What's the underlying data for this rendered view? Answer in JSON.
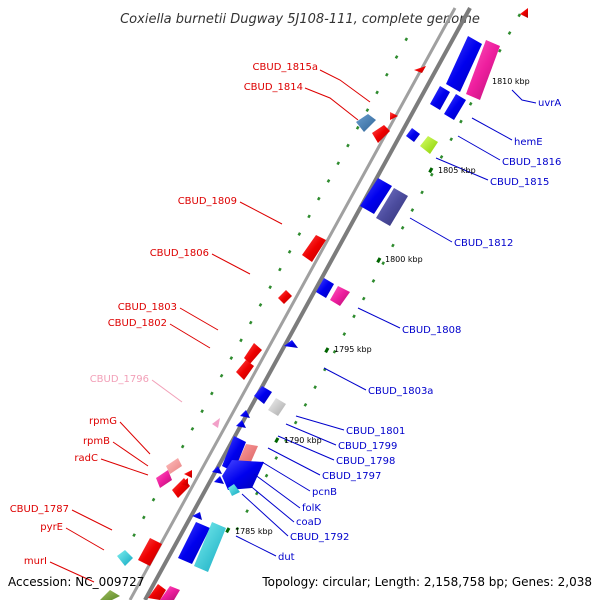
{
  "title": "Coxiella burnetii Dugway 5J108-111, complete genome",
  "footer": {
    "accession": "Accession: NC_009727",
    "summary": "Topology: circular; Length: 2,158,758 bp; Genes: 2,038"
  },
  "colors": {
    "backbone": "#8c8c8c",
    "minor_tick": "#2e8b2e",
    "major_tick": "#006400",
    "left_label": "#dd0000",
    "left_label_faded": "#f2a0b8",
    "right_label": "#0000cc"
  },
  "ticks": [
    {
      "label": "1810 kbp"
    },
    {
      "label": "1805 kbp"
    },
    {
      "label": "1800 kbp"
    },
    {
      "label": "1795 kbp"
    },
    {
      "label": "1790 kbp"
    },
    {
      "label": "1785 kbp"
    }
  ],
  "left_labels": [
    {
      "text": "CBUD_1815a",
      "faded": false
    },
    {
      "text": "CBUD_1814",
      "faded": false
    },
    {
      "text": "CBUD_1809",
      "faded": false
    },
    {
      "text": "CBUD_1806",
      "faded": false
    },
    {
      "text": "CBUD_1803",
      "faded": false
    },
    {
      "text": "CBUD_1802",
      "faded": false
    },
    {
      "text": "CBUD_1796",
      "faded": true
    },
    {
      "text": "rpmG",
      "faded": false
    },
    {
      "text": "rpmB",
      "faded": false
    },
    {
      "text": "radC",
      "faded": false
    },
    {
      "text": "CBUD_1787",
      "faded": false
    },
    {
      "text": "pyrE",
      "faded": false
    },
    {
      "text": "murI",
      "faded": false
    }
  ],
  "right_labels": [
    {
      "text": "uvrA"
    },
    {
      "text": "hemE"
    },
    {
      "text": "CBUD_1816"
    },
    {
      "text": "CBUD_1815"
    },
    {
      "text": "CBUD_1812"
    },
    {
      "text": "CBUD_1808"
    },
    {
      "text": "CBUD_1803a"
    },
    {
      "text": "CBUD_1801"
    },
    {
      "text": "CBUD_1799"
    },
    {
      "text": "CBUD_1798"
    },
    {
      "text": "CBUD_1797"
    },
    {
      "text": "pcnB"
    },
    {
      "text": "folK"
    },
    {
      "text": "coaD"
    },
    {
      "text": "CBUD_1792"
    },
    {
      "text": "dut"
    }
  ]
}
